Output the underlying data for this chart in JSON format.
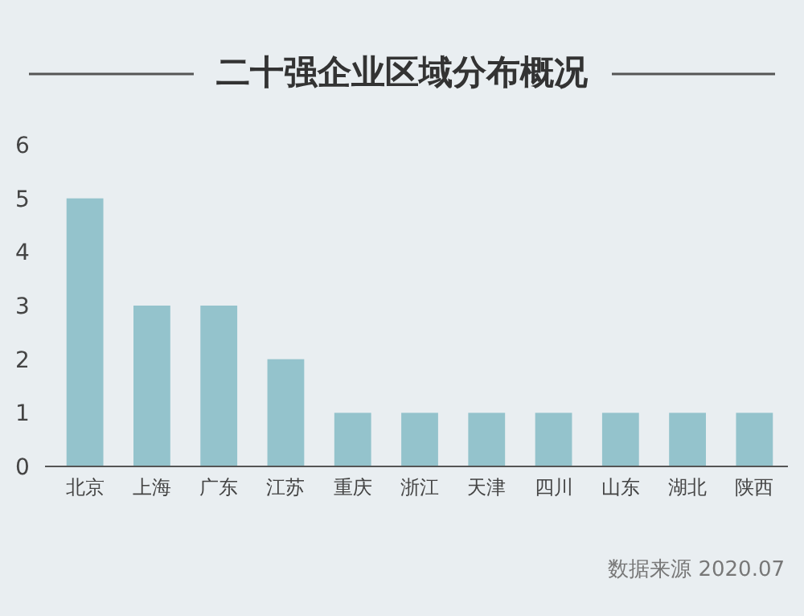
{
  "chart_data": {
    "type": "bar",
    "title": "二十强企业区域分布概况",
    "categories": [
      "北京",
      "上海",
      "广东",
      "江苏",
      "重庆",
      "浙江",
      "天津",
      "四川",
      "山东",
      "湖北",
      "陕西"
    ],
    "values": [
      5,
      3,
      3,
      2,
      1,
      1,
      1,
      1,
      1,
      1,
      1
    ],
    "color": "#94c3cc",
    "ylim": [
      0,
      6
    ],
    "yticks": [
      0,
      1,
      2,
      3,
      4,
      5,
      6
    ],
    "annotations": [
      "数据来源 2020.07"
    ]
  }
}
